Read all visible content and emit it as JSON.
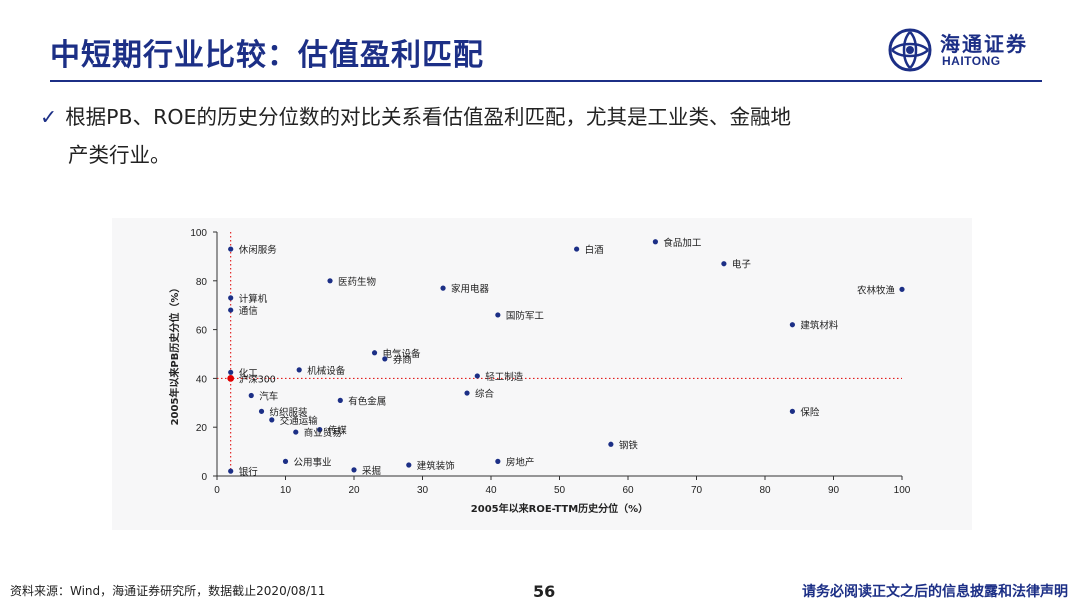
{
  "slide": {
    "title": "中短期行业比较：估值盈利匹配",
    "bullet_line1": "根据PB、ROE的历史分位数的对比关系看估值盈利匹配，尤其是工业类、金融地",
    "bullet_line2": "产类行业。",
    "logo_cn": "海通证券",
    "logo_en": "HAITONG",
    "source": "资料来源：Wind，海通证券研究所，数据截止2020/08/11",
    "page_number": "56",
    "disclaimer": "请务必阅读正文之后的信息披露和法律声明"
  },
  "colors": {
    "brand": "#1c2f86",
    "point": "#1c2f86",
    "reference": "#e00000"
  },
  "chart_data": {
    "type": "scatter",
    "xlabel": "2005年以来ROE-TTM历史分位（%）",
    "ylabel": "2005年以来PB历史分位（%）",
    "xlim": [
      0,
      100
    ],
    "ylim": [
      0,
      100
    ],
    "xticks": [
      0,
      10,
      20,
      30,
      40,
      50,
      60,
      70,
      80,
      90,
      100
    ],
    "yticks": [
      0,
      20,
      40,
      60,
      80,
      100
    ],
    "grid": false,
    "reference_lines": {
      "x": 2,
      "y": 40,
      "style": "dotted"
    },
    "points": [
      {
        "label": "休闲服务",
        "x": 2,
        "y": 93
      },
      {
        "label": "食品加工",
        "x": 64,
        "y": 96
      },
      {
        "label": "白酒",
        "x": 52.5,
        "y": 93
      },
      {
        "label": "电子",
        "x": 74,
        "y": 87
      },
      {
        "label": "医药生物",
        "x": 16.5,
        "y": 80
      },
      {
        "label": "家用电器",
        "x": 33,
        "y": 77
      },
      {
        "label": "农林牧渔",
        "x": 100,
        "y": 76.5
      },
      {
        "label": "计算机",
        "x": 2,
        "y": 73
      },
      {
        "label": "通信",
        "x": 2,
        "y": 68
      },
      {
        "label": "国防军工",
        "x": 41,
        "y": 66
      },
      {
        "label": "建筑材料",
        "x": 84,
        "y": 62
      },
      {
        "label": "电气设备",
        "x": 23,
        "y": 50.5
      },
      {
        "label": "券商",
        "x": 24.5,
        "y": 48
      },
      {
        "label": "化工",
        "x": 2,
        "y": 42.5
      },
      {
        "label": "机械设备",
        "x": 12,
        "y": 43.5
      },
      {
        "label": "轻工制造",
        "x": 38,
        "y": 41
      },
      {
        "label": "沪深300",
        "x": 2,
        "y": 40,
        "reference": true
      },
      {
        "label": "综合",
        "x": 36.5,
        "y": 34
      },
      {
        "label": "汽车",
        "x": 5,
        "y": 33
      },
      {
        "label": "有色金属",
        "x": 18,
        "y": 31
      },
      {
        "label": "纺织服装",
        "x": 6.5,
        "y": 26.5
      },
      {
        "label": "保险",
        "x": 84,
        "y": 26.5
      },
      {
        "label": "传媒",
        "x": 15,
        "y": 19
      },
      {
        "label": "交通运输",
        "x": 8,
        "y": 23
      },
      {
        "label": "商业贸易",
        "x": 11.5,
        "y": 18
      },
      {
        "label": "钢铁",
        "x": 57.5,
        "y": 13
      },
      {
        "label": "公用事业",
        "x": 10,
        "y": 6
      },
      {
        "label": "房地产",
        "x": 41,
        "y": 6
      },
      {
        "label": "建筑装饰",
        "x": 28,
        "y": 4.5
      },
      {
        "label": "采掘",
        "x": 20,
        "y": 2.5
      },
      {
        "label": "银行",
        "x": 2,
        "y": 2
      }
    ]
  }
}
